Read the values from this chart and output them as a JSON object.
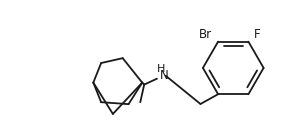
{
  "bg_color": "#ffffff",
  "line_color": "#1a1a1a",
  "text_color": "#1a1a1a",
  "label_Br": "Br",
  "label_F": "F",
  "label_NH": "H\nN",
  "figsize": [
    3.07,
    1.3
  ],
  "dpi": 100,
  "lw": 1.3
}
